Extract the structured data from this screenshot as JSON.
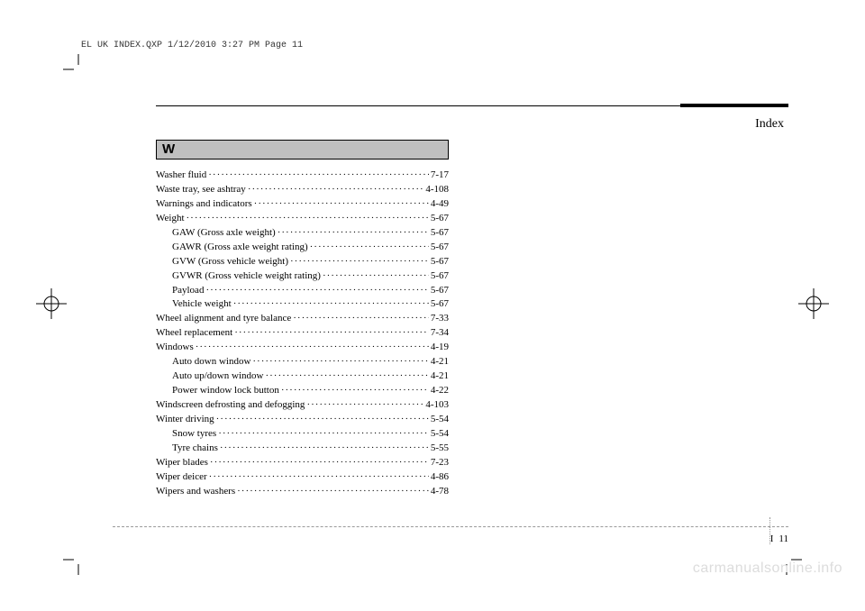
{
  "header_tag": "EL UK INDEX.QXP  1/12/2010  3:27 PM  Page 11",
  "section_title": "Index",
  "section_letter": "W",
  "page_number_prefix": "I",
  "page_number": "11",
  "watermark": "carmanualsonline.info",
  "entries": [
    {
      "label": "Washer fluid",
      "page": "7-17",
      "indent": false
    },
    {
      "label": "Waste tray, see ashtray",
      "page": "4-108",
      "indent": false
    },
    {
      "label": "Warnings and indicators",
      "page": "4-49",
      "indent": false
    },
    {
      "label": "Weight",
      "page": "5-67",
      "indent": false
    },
    {
      "label": "GAW (Gross axle weight)",
      "page": "5-67",
      "indent": true
    },
    {
      "label": "GAWR (Gross axle weight rating)",
      "page": "5-67",
      "indent": true
    },
    {
      "label": "GVW (Gross vehicle weight)",
      "page": "5-67",
      "indent": true
    },
    {
      "label": "GVWR (Gross vehicle weight rating)",
      "page": "5-67",
      "indent": true
    },
    {
      "label": "Payload",
      "page": "5-67",
      "indent": true
    },
    {
      "label": "Vehicle weight",
      "page": "5-67",
      "indent": true
    },
    {
      "label": "Wheel alignment and tyre balance",
      "page": "7-33",
      "indent": false
    },
    {
      "label": "Wheel replacement",
      "page": "7-34",
      "indent": false
    },
    {
      "label": "Windows",
      "page": "4-19",
      "indent": false
    },
    {
      "label": "Auto down window",
      "page": "4-21",
      "indent": true
    },
    {
      "label": "Auto up/down window",
      "page": "4-21",
      "indent": true
    },
    {
      "label": "Power window lock button",
      "page": "4-22",
      "indent": true
    },
    {
      "label": "Windscreen defrosting and defogging",
      "page": "4-103",
      "indent": false
    },
    {
      "label": "Winter driving",
      "page": "5-54",
      "indent": false
    },
    {
      "label": "Snow tyres",
      "page": "5-54",
      "indent": true
    },
    {
      "label": "Tyre chains",
      "page": "5-55",
      "indent": true
    },
    {
      "label": "Wiper blades",
      "page": "7-23",
      "indent": false
    },
    {
      "label": "Wiper deicer",
      "page": "4-86",
      "indent": false
    },
    {
      "label": "Wipers and washers",
      "page": "4-78",
      "indent": false
    }
  ],
  "colors": {
    "section_header_bg": "#bfbfbf",
    "rule": "#000000",
    "dashed": "#999999",
    "watermark": "#dcdcdc",
    "background": "#ffffff"
  },
  "typography": {
    "body_font": "Times New Roman",
    "body_size_pt": 9,
    "header_tag_font": "Courier New",
    "header_tag_size_pt": 8,
    "section_letter_size_pt": 12,
    "section_title_size_pt": 11
  }
}
